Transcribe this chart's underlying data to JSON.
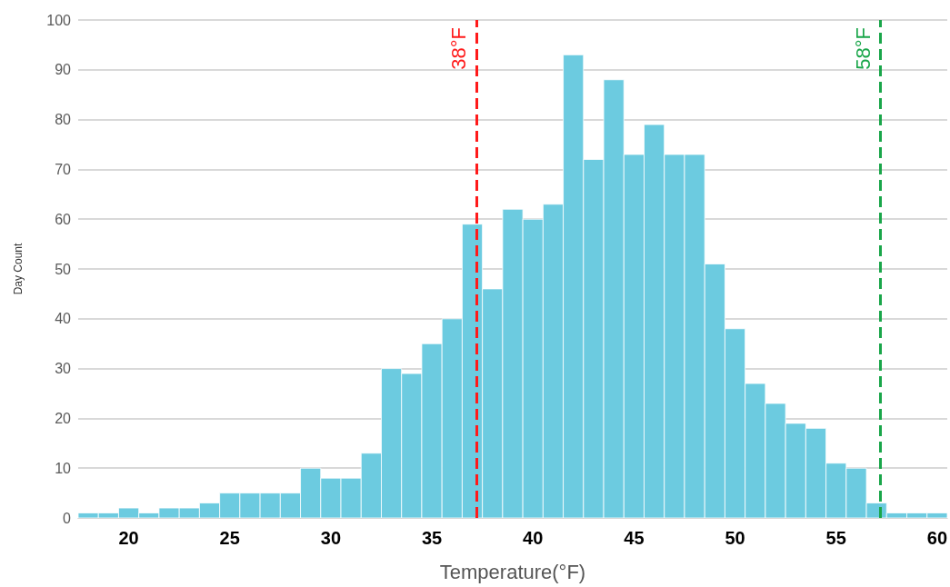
{
  "chart_data": {
    "type": "histogram",
    "xlabel": "Temperature(°F)",
    "ylabel": "Day Count",
    "bins": [
      17.5,
      18.5,
      19.5,
      20.5,
      21.5,
      22.5,
      23.5,
      24.5,
      25.5,
      26.5,
      27.5,
      28.5,
      29.5,
      30.5,
      31.5,
      32.5,
      33.5,
      34.5,
      35.5,
      36.5,
      37.5,
      38.5,
      39.5,
      40.5,
      41.5,
      42.5,
      43.5,
      44.5,
      45.5,
      46.5,
      47.5,
      48.5,
      49.5,
      50.5,
      51.5,
      52.5,
      53.5,
      54.5,
      55.5,
      56.5,
      57.5,
      58.5,
      59.5,
      60.5
    ],
    "values": [
      1,
      1,
      2,
      1,
      2,
      2,
      3,
      5,
      5,
      5,
      5,
      10,
      8,
      8,
      13,
      30,
      29,
      35,
      40,
      59,
      46,
      62,
      60,
      63,
      93,
      72,
      88,
      73,
      79,
      73,
      73,
      51,
      38,
      27,
      23,
      19,
      18,
      11,
      10,
      3,
      1,
      1,
      1
    ],
    "color": "#6ccbe0",
    "xlim": [
      17.5,
      60.5
    ],
    "xticks": [
      20,
      25,
      30,
      35,
      40,
      45,
      50,
      55,
      60
    ],
    "ylim": [
      0,
      100
    ],
    "yticks": [
      0,
      10,
      20,
      30,
      40,
      50,
      60,
      70,
      80,
      90,
      100
    ],
    "grid": "y",
    "ref_lines": [
      {
        "axis": "x",
        "value": 37.2,
        "label": "38°F",
        "color": "#ff1a1a",
        "line_style": "dashed"
      },
      {
        "axis": "x",
        "value": 57.2,
        "label": "58°F",
        "color": "#1aa64a",
        "line_style": "dashed"
      }
    ]
  }
}
